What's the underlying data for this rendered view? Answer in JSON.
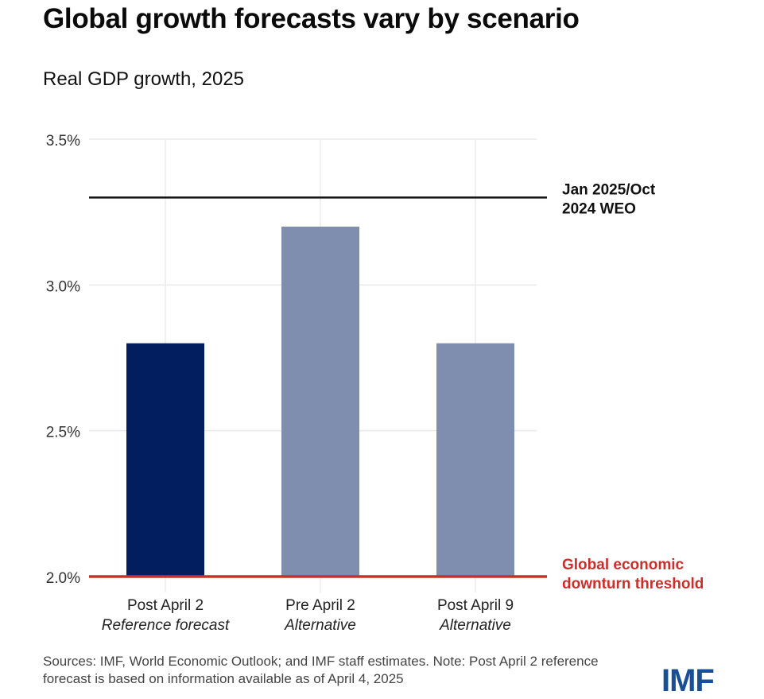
{
  "title": "Global growth forecasts vary by scenario",
  "subtitle": "Real GDP growth, 2025",
  "chart_data": {
    "type": "bar",
    "title": "Global growth forecasts vary by scenario",
    "subtitle": "Real GDP growth, 2025",
    "xlabel": "",
    "ylabel": "",
    "ylim": [
      2.0,
      3.5
    ],
    "yticks": [
      2.0,
      2.5,
      3.0,
      3.5
    ],
    "ytick_labels": [
      "2.0%",
      "2.5%",
      "3.0%",
      "3.5%"
    ],
    "grid": true,
    "categories": [
      {
        "label": "Post April 2",
        "sublabel": "Reference forecast"
      },
      {
        "label": "Pre April 2",
        "sublabel": "Alternative"
      },
      {
        "label": "Post April 9",
        "sublabel": "Alternative"
      }
    ],
    "values": [
      2.8,
      3.2,
      2.8
    ],
    "bar_colors": [
      "#021e5e",
      "#7f8daf",
      "#7f8daf"
    ],
    "reference_lines": [
      {
        "value": 3.3,
        "label_lines": [
          "Jan 2025/Oct",
          "2024 WEO"
        ],
        "color": "#111111"
      },
      {
        "value": 2.0,
        "label_lines": [
          "Global economic",
          "downturn threshold"
        ],
        "color": "#c9302c"
      }
    ]
  },
  "footer": {
    "note": "Sources: IMF, World Economic Outlook; and IMF staff estimates. Note: Post April 2 reference forecast is based on information available as of April 4, 2025"
  },
  "logo": "IMF"
}
